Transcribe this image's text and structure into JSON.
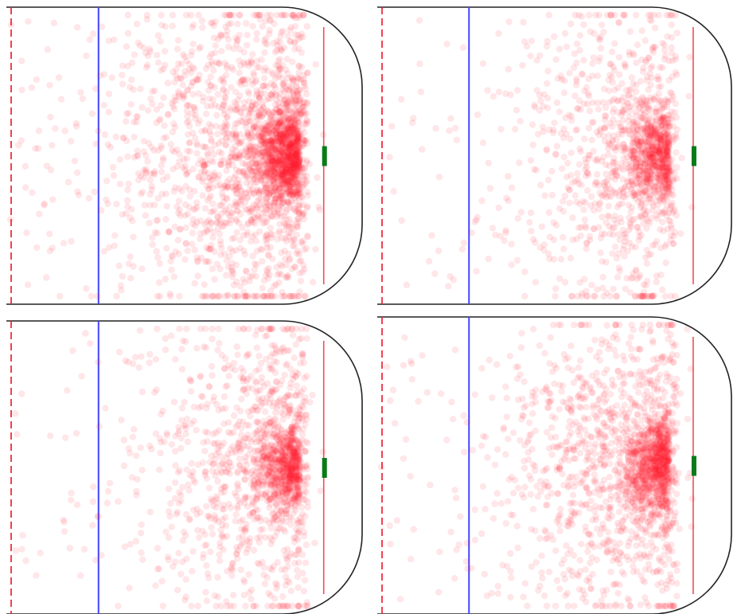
{
  "chart_data": [
    {
      "type": "scatter",
      "panel": "top-left",
      "density": 1.0,
      "hotspot_spread": 1.0,
      "shots_shown": 2600,
      "colors": {
        "points": "#ff1a2e",
        "blue_line": "#4444ff",
        "red_line": "#ee2233",
        "goal": "#0a7a1a",
        "boards": "#222222"
      }
    },
    {
      "type": "scatter",
      "panel": "top-right",
      "density": 0.55,
      "hotspot_spread": 0.9,
      "shots_shown": 1500,
      "colors": {
        "points": "#ff1a2e",
        "blue_line": "#4444ff",
        "red_line": "#ee2233",
        "goal": "#0a7a1a",
        "boards": "#222222"
      }
    },
    {
      "type": "scatter",
      "panel": "bottom-left",
      "density": 0.6,
      "hotspot_spread": 0.85,
      "shots_shown": 1600,
      "colors": {
        "points": "#ff1a2e",
        "blue_line": "#4444ff",
        "red_line": "#ee2233",
        "goal": "#0a7a1a",
        "boards": "#222222"
      }
    },
    {
      "type": "scatter",
      "panel": "bottom-right",
      "density": 0.75,
      "hotspot_spread": 0.95,
      "shots_shown": 1950,
      "colors": {
        "points": "#ff1a2e",
        "blue_line": "#4444ff",
        "red_line": "#ee2233",
        "goal": "#0a7a1a",
        "boards": "#222222"
      }
    }
  ]
}
